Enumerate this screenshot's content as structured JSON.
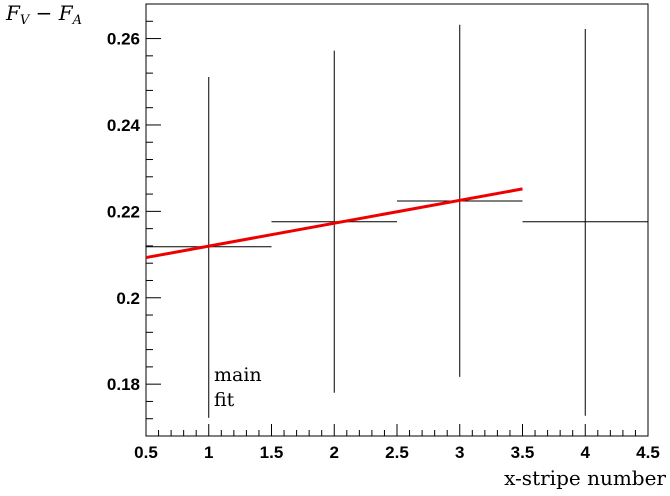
{
  "chart_data": {
    "type": "scatter",
    "title": "",
    "xlabel": "x-stripe number",
    "ylabel": "F_V − F_A",
    "ylabel_main": "F",
    "ylabel_sub1": "V",
    "ylabel_minus": " − F",
    "ylabel_sub2": "A",
    "xlim": [
      0.5,
      4.5
    ],
    "ylim": [
      0.168,
      0.268
    ],
    "x_ticks": [
      0.5,
      1,
      1.5,
      2,
      2.5,
      3,
      3.5,
      4,
      4.5
    ],
    "x_tick_labels": [
      "0.5",
      "1",
      "1.5",
      "2",
      "2.5",
      "3",
      "3.5",
      "4",
      "4.5"
    ],
    "y_ticks": [
      0.18,
      0.2,
      0.22,
      0.24,
      0.26
    ],
    "y_tick_labels": [
      "0.18",
      "0.2",
      "0.22",
      "0.24",
      "0.26"
    ],
    "grid": false,
    "series": [
      {
        "points": [
          {
            "x": 1,
            "y": 0.2118,
            "xerr": 0.5,
            "yerr_low": 0.0396,
            "yerr_high": 0.0393
          },
          {
            "x": 2,
            "y": 0.2176,
            "xerr": 0.5,
            "yerr_low": 0.0396,
            "yerr_high": 0.0396
          },
          {
            "x": 3,
            "y": 0.2224,
            "xerr": 0.5,
            "yerr_low": 0.0407,
            "yerr_high": 0.0408
          },
          {
            "x": 4,
            "y": 0.2176,
            "xerr": 0.5,
            "yerr_low": 0.0449,
            "yerr_high": 0.0446
          }
        ],
        "color": "#000000"
      }
    ],
    "fit": {
      "x": [
        0.5,
        3.5
      ],
      "y": [
        0.2093,
        0.2252
      ],
      "color": "#ee0000"
    },
    "annotation_lines": [
      "main",
      "fit"
    ]
  }
}
